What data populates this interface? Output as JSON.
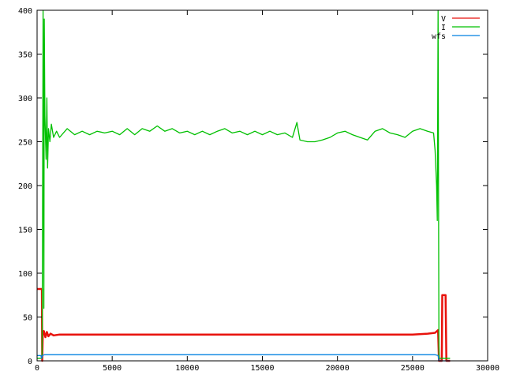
{
  "chart_data": {
    "type": "line",
    "title": "",
    "xlabel": "",
    "ylabel": "",
    "xlim": [
      0,
      30000
    ],
    "ylim": [
      0,
      400
    ],
    "x_ticks": [
      0,
      5000,
      10000,
      15000,
      20000,
      25000,
      30000
    ],
    "y_ticks": [
      0,
      50,
      100,
      150,
      200,
      250,
      300,
      350,
      400
    ],
    "grid": false,
    "legend_position": "top-right",
    "series": [
      {
        "name": "V",
        "color": "#e8120c",
        "points": [
          [
            0,
            82
          ],
          [
            300,
            82
          ],
          [
            320,
            82
          ],
          [
            340,
            0
          ],
          [
            380,
            30
          ],
          [
            450,
            34
          ],
          [
            550,
            27
          ],
          [
            650,
            33
          ],
          [
            750,
            28
          ],
          [
            900,
            31
          ],
          [
            1100,
            29
          ],
          [
            1500,
            30
          ],
          [
            2000,
            30
          ],
          [
            3000,
            30
          ],
          [
            4000,
            30
          ],
          [
            5000,
            30
          ],
          [
            6000,
            30
          ],
          [
            7000,
            30
          ],
          [
            8000,
            30
          ],
          [
            9000,
            30
          ],
          [
            10000,
            30
          ],
          [
            11000,
            30
          ],
          [
            12000,
            30
          ],
          [
            13000,
            30
          ],
          [
            14000,
            30
          ],
          [
            15000,
            30
          ],
          [
            16000,
            30
          ],
          [
            17000,
            30
          ],
          [
            18000,
            30
          ],
          [
            19000,
            30
          ],
          [
            20000,
            30
          ],
          [
            21000,
            30
          ],
          [
            22000,
            30
          ],
          [
            23000,
            30
          ],
          [
            24000,
            30
          ],
          [
            25000,
            30
          ],
          [
            26000,
            31
          ],
          [
            26500,
            32
          ],
          [
            26700,
            35
          ],
          [
            26760,
            0
          ],
          [
            26950,
            0
          ],
          [
            26980,
            75
          ],
          [
            27200,
            75
          ],
          [
            27250,
            0
          ],
          [
            27500,
            0
          ]
        ]
      },
      {
        "name": "I",
        "color": "#00c000",
        "points": [
          [
            0,
            3
          ],
          [
            300,
            3
          ],
          [
            330,
            3
          ],
          [
            360,
            150
          ],
          [
            400,
            400
          ],
          [
            450,
            60
          ],
          [
            480,
            390
          ],
          [
            520,
            280
          ],
          [
            600,
            230
          ],
          [
            650,
            300
          ],
          [
            700,
            220
          ],
          [
            760,
            265
          ],
          [
            850,
            250
          ],
          [
            950,
            270
          ],
          [
            1100,
            255
          ],
          [
            1300,
            262
          ],
          [
            1500,
            255
          ],
          [
            2000,
            265
          ],
          [
            2500,
            258
          ],
          [
            3000,
            262
          ],
          [
            3500,
            258
          ],
          [
            4000,
            262
          ],
          [
            4500,
            260
          ],
          [
            5000,
            262
          ],
          [
            5500,
            258
          ],
          [
            6000,
            265
          ],
          [
            6500,
            258
          ],
          [
            7000,
            265
          ],
          [
            7500,
            262
          ],
          [
            8000,
            268
          ],
          [
            8500,
            262
          ],
          [
            9000,
            265
          ],
          [
            9500,
            260
          ],
          [
            10000,
            262
          ],
          [
            10500,
            258
          ],
          [
            11000,
            262
          ],
          [
            11500,
            258
          ],
          [
            12000,
            262
          ],
          [
            12500,
            265
          ],
          [
            13000,
            260
          ],
          [
            13500,
            262
          ],
          [
            14000,
            258
          ],
          [
            14500,
            262
          ],
          [
            15000,
            258
          ],
          [
            15500,
            262
          ],
          [
            16000,
            258
          ],
          [
            16500,
            260
          ],
          [
            17000,
            255
          ],
          [
            17300,
            272
          ],
          [
            17500,
            252
          ],
          [
            18000,
            250
          ],
          [
            18500,
            250
          ],
          [
            19000,
            252
          ],
          [
            19500,
            255
          ],
          [
            20000,
            260
          ],
          [
            20500,
            262
          ],
          [
            21000,
            258
          ],
          [
            21500,
            255
          ],
          [
            22000,
            252
          ],
          [
            22500,
            262
          ],
          [
            23000,
            265
          ],
          [
            23500,
            260
          ],
          [
            24000,
            258
          ],
          [
            24500,
            255
          ],
          [
            25000,
            262
          ],
          [
            25500,
            265
          ],
          [
            26000,
            262
          ],
          [
            26400,
            260
          ],
          [
            26500,
            240
          ],
          [
            26600,
            200
          ],
          [
            26650,
            160
          ],
          [
            26700,
            400
          ],
          [
            26760,
            3
          ],
          [
            27500,
            3
          ]
        ]
      },
      {
        "name": "wfs",
        "color": "#0080e0",
        "points": [
          [
            0,
            6
          ],
          [
            250,
            6
          ],
          [
            300,
            3
          ],
          [
            350,
            6
          ],
          [
            500,
            7
          ],
          [
            1000,
            7
          ],
          [
            5000,
            7
          ],
          [
            10000,
            7
          ],
          [
            15000,
            7
          ],
          [
            20000,
            7
          ],
          [
            25000,
            7
          ],
          [
            26500,
            7
          ],
          [
            26700,
            6
          ],
          [
            26760,
            0
          ],
          [
            27500,
            0
          ]
        ]
      }
    ]
  }
}
